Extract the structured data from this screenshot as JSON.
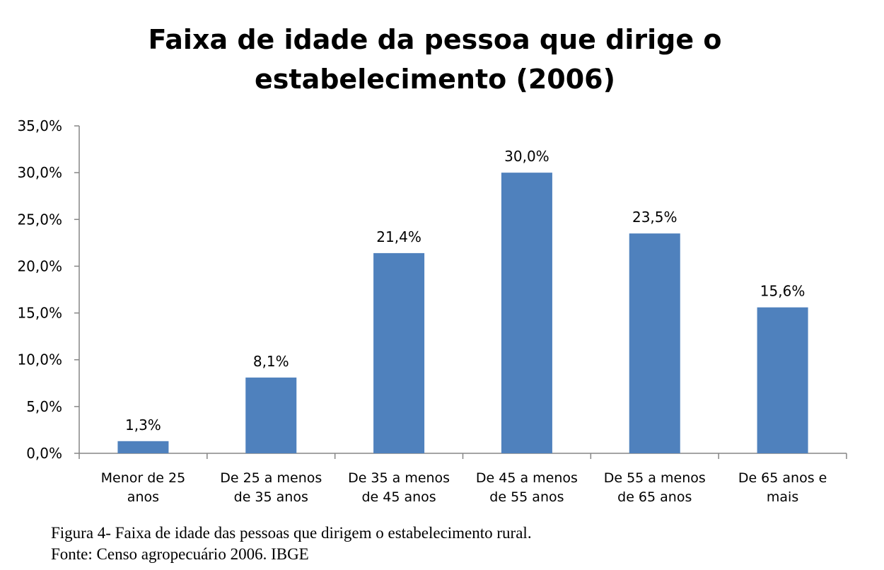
{
  "chart_data": {
    "type": "bar",
    "title_line1": "Faixa de idade da pessoa que dirige o",
    "title_line2": "estabelecimento (2006)",
    "categories": [
      [
        "Menor de 25",
        "anos"
      ],
      [
        "De 25 a menos",
        "de 35 anos"
      ],
      [
        "De 35 a menos",
        "de 45 anos"
      ],
      [
        "De 45 a menos",
        "de 55 anos"
      ],
      [
        "De 55 a menos",
        "de 65 anos"
      ],
      [
        "De 65 anos e",
        "mais"
      ]
    ],
    "values": [
      1.3,
      8.1,
      21.4,
      30.0,
      23.5,
      15.6
    ],
    "data_labels": [
      "1,3%",
      "8,1%",
      "21,4%",
      "30,0%",
      "23,5%",
      "15,6%"
    ],
    "y_ticks": [
      0,
      5,
      10,
      15,
      20,
      25,
      30,
      35
    ],
    "y_tick_labels": [
      "0,0%",
      "5,0%",
      "10,0%",
      "15,0%",
      "20,0%",
      "25,0%",
      "30,0%",
      "35,0%"
    ],
    "ylim": [
      0,
      35
    ],
    "grid": false,
    "bar_color": "#4f81bd",
    "axis_color": "#868686"
  },
  "caption": {
    "line1": "Figura 4- Faixa de idade das pessoas que dirigem o estabelecimento rural.",
    "line2": "Fonte: Censo agropecuário 2006. IBGE"
  }
}
